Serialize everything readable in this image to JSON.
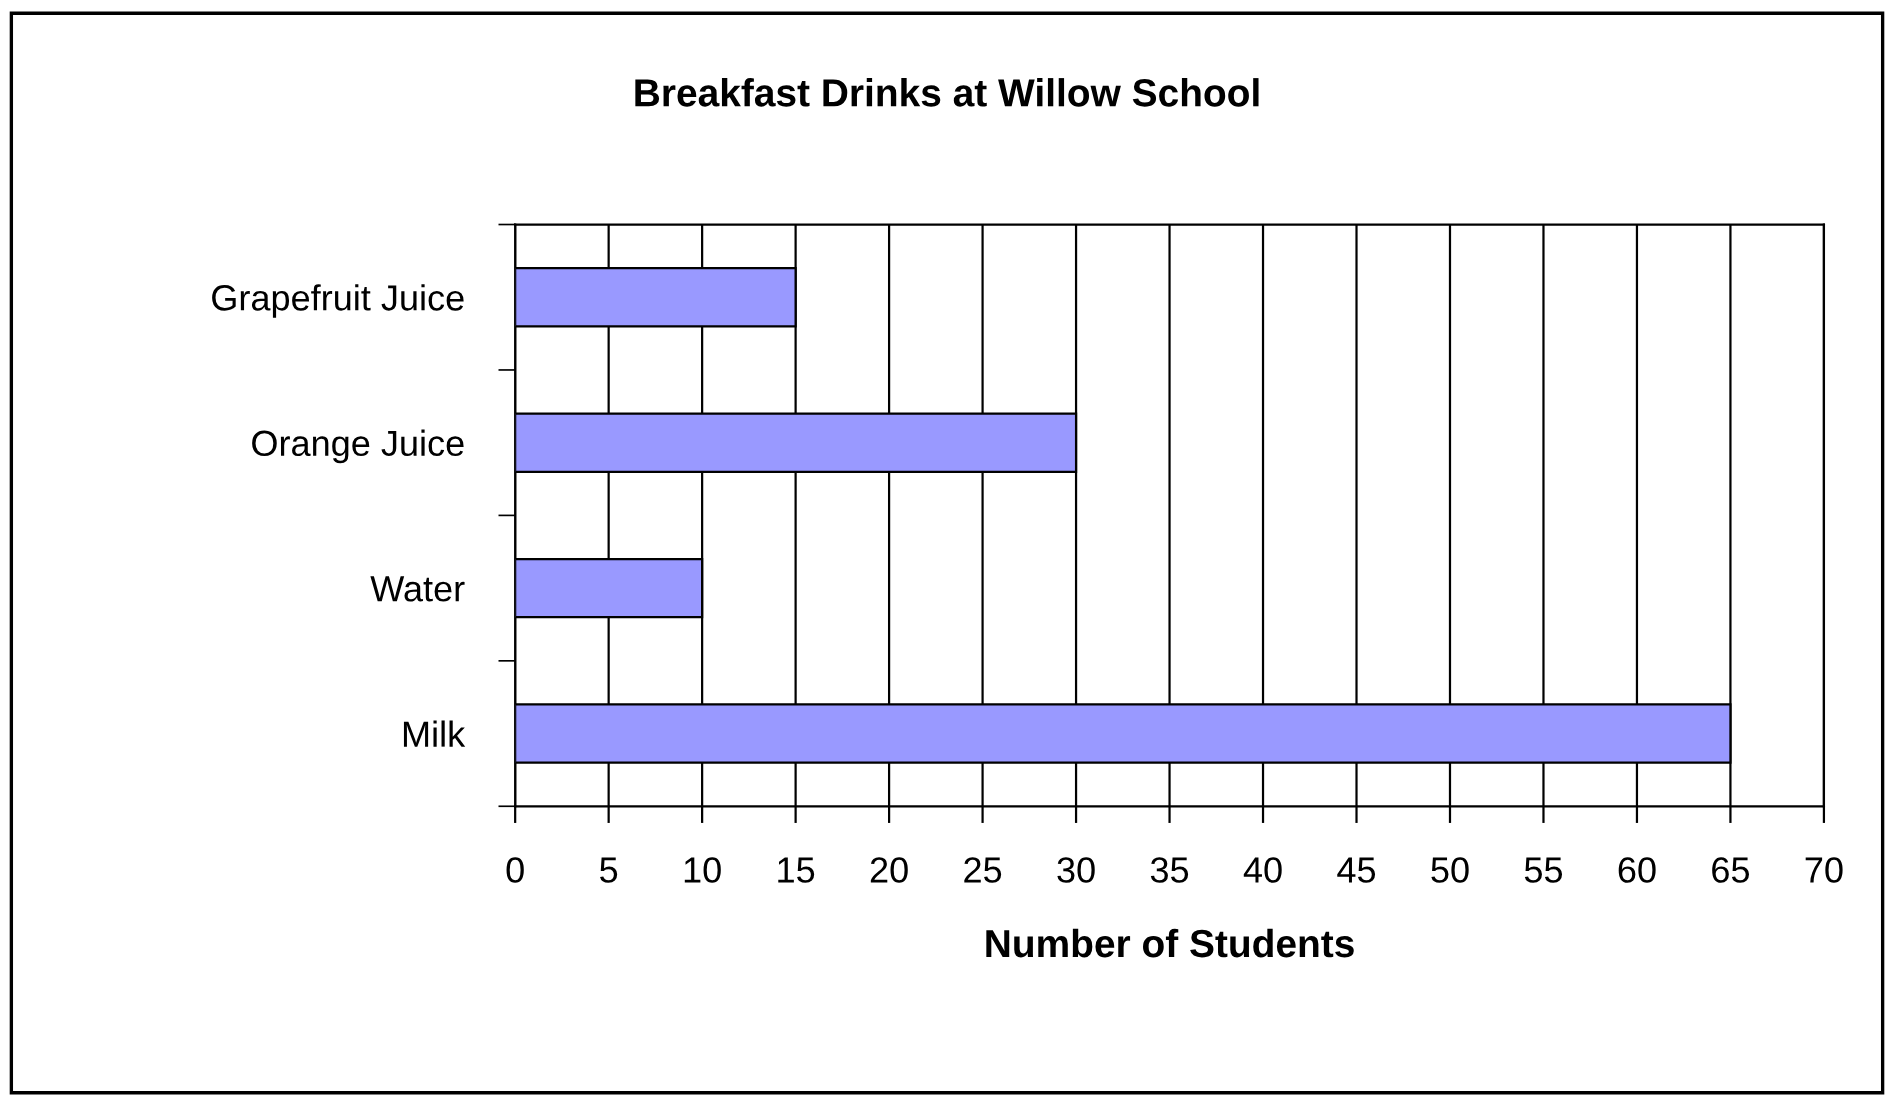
{
  "chart_data": {
    "type": "bar",
    "orientation": "horizontal",
    "title": "Breakfast Drinks at Willow School",
    "xlabel": "Number of Students",
    "categories": [
      "Grapefruit Juice",
      "Orange Juice",
      "Water",
      "Milk"
    ],
    "values": [
      15,
      30,
      10,
      65
    ],
    "color": "#9999ff",
    "xlim": [
      0,
      70
    ],
    "xticks": [
      0,
      5,
      10,
      15,
      20,
      25,
      30,
      35,
      40,
      45,
      50,
      55,
      60,
      65,
      70
    ],
    "grid": "x",
    "legend": false
  }
}
